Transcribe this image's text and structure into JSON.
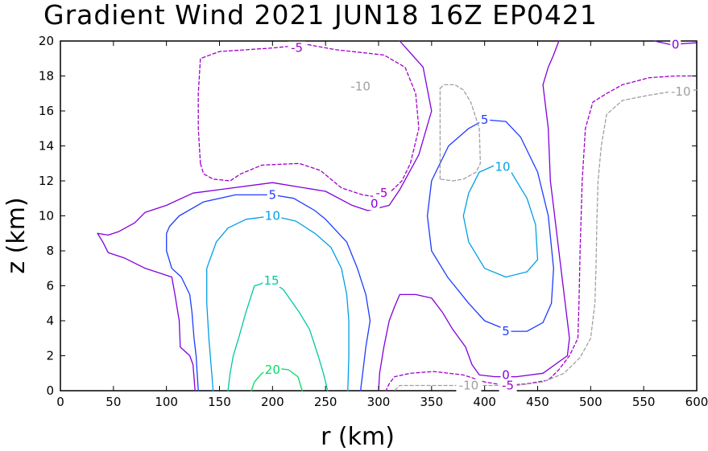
{
  "chart_data": {
    "type": "contour",
    "title": "Gradient Wind 2021 JUN18 16Z  EP0421",
    "xlabel": "r (km)",
    "ylabel": "z (km)",
    "xlim": [
      0,
      600
    ],
    "ylim": [
      0,
      20
    ],
    "x_ticks": [
      0,
      50,
      100,
      150,
      200,
      250,
      300,
      350,
      400,
      450,
      500,
      550,
      600
    ],
    "y_ticks": [
      0,
      2,
      4,
      6,
      8,
      10,
      12,
      14,
      16,
      18,
      20
    ],
    "levels": [
      {
        "value": -10,
        "label": "-10",
        "color": "#a0a0a0",
        "dashed": true
      },
      {
        "value": -5,
        "label": "-5",
        "color": "#a000c8",
        "dashed": true
      },
      {
        "value": 0,
        "label": "0",
        "color": "#8200dc",
        "dashed": false
      },
      {
        "value": 5,
        "label": "5",
        "color": "#1e3cff",
        "dashed": false
      },
      {
        "value": 10,
        "label": "10",
        "color": "#00a0e6",
        "dashed": false
      },
      {
        "value": 15,
        "label": "15",
        "color": "#00c8a0",
        "dashed": false
      },
      {
        "value": 20,
        "label": "20",
        "color": "#00dc64",
        "dashed": false
      }
    ],
    "contours": [
      {
        "level": 0,
        "points": [
          [
            35,
            9
          ],
          [
            45,
            8.9
          ],
          [
            55,
            9.1
          ],
          [
            70,
            9.6
          ],
          [
            80,
            10.2
          ],
          [
            100,
            10.6
          ],
          [
            125,
            11.3
          ],
          [
            150,
            11.5
          ],
          [
            200,
            11.9
          ],
          [
            250,
            11.4
          ],
          [
            275,
            10.6
          ],
          [
            290,
            10.3
          ],
          [
            310,
            10.6
          ],
          [
            320,
            11.5
          ],
          [
            338,
            13.5
          ],
          [
            350,
            16
          ],
          [
            342,
            18.5
          ],
          [
            320,
            20
          ]
        ]
      },
      {
        "level": 0,
        "points": [
          [
            35,
            9
          ],
          [
            40,
            8.5
          ],
          [
            45,
            7.9
          ],
          [
            60,
            7.6
          ],
          [
            80,
            7
          ],
          [
            105,
            6.5
          ],
          [
            108,
            5.5
          ],
          [
            112,
            4
          ],
          [
            113,
            2.5
          ],
          [
            122,
            2
          ],
          [
            125,
            1.5
          ],
          [
            127,
            0
          ]
        ]
      },
      {
        "level": 0,
        "points": [
          [
            470,
            20
          ],
          [
            465,
            19.2
          ],
          [
            460,
            18.5
          ],
          [
            455,
            17.5
          ],
          [
            460,
            15
          ],
          [
            462,
            12
          ],
          [
            465,
            10.5
          ],
          [
            470,
            8
          ],
          [
            480,
            3
          ],
          [
            478,
            2
          ],
          [
            455,
            1
          ],
          [
            430,
            0.8
          ],
          [
            410,
            0.8
          ],
          [
            395,
            0.9
          ],
          [
            388,
            1.5
          ],
          [
            382,
            2.5
          ],
          [
            370,
            3.5
          ],
          [
            360,
            4.5
          ],
          [
            350,
            5.3
          ],
          [
            335,
            5.5
          ],
          [
            320,
            5.5
          ],
          [
            315,
            4.8
          ],
          [
            310,
            4
          ],
          [
            305,
            2.5
          ],
          [
            301,
            1
          ],
          [
            300,
            0
          ]
        ]
      },
      {
        "level": 0,
        "points": [
          [
            560,
            20
          ],
          [
            575,
            19.8
          ],
          [
            600,
            19.9
          ]
        ]
      },
      {
        "level": 5,
        "points": [
          [
            130,
            0
          ],
          [
            129,
            1
          ],
          [
            128,
            2
          ],
          [
            126,
            3
          ],
          [
            124,
            4.5
          ],
          [
            122,
            5.5
          ],
          [
            114,
            6.5
          ],
          [
            105,
            7
          ],
          [
            100,
            8
          ],
          [
            100,
            9
          ],
          [
            103,
            9.4
          ],
          [
            112,
            10
          ],
          [
            135,
            10.8
          ],
          [
            165,
            11.2
          ],
          [
            200,
            11.2
          ],
          [
            220,
            11
          ],
          [
            240,
            10.3
          ],
          [
            250,
            9.8
          ],
          [
            270,
            8.5
          ],
          [
            280,
            7
          ],
          [
            288,
            5.5
          ],
          [
            292,
            4
          ],
          [
            288,
            2.5
          ],
          [
            285,
            1
          ],
          [
            283,
            0
          ]
        ]
      },
      {
        "level": 5,
        "points": [
          [
            420,
            3.5
          ],
          [
            400,
            4
          ],
          [
            385,
            5
          ],
          [
            365,
            6.5
          ],
          [
            350,
            8
          ],
          [
            346,
            10
          ],
          [
            350,
            12
          ],
          [
            366,
            14
          ],
          [
            385,
            15
          ],
          [
            400,
            15.5
          ],
          [
            420,
            15.4
          ],
          [
            434,
            14.5
          ],
          [
            450,
            12.5
          ],
          [
            460,
            10
          ],
          [
            465,
            7
          ],
          [
            463,
            5
          ],
          [
            455,
            3.9
          ],
          [
            440,
            3.4
          ],
          [
            425,
            3.4
          ],
          [
            420,
            3.5
          ]
        ]
      },
      {
        "level": 10,
        "points": [
          [
            144,
            0
          ],
          [
            142,
            1.5
          ],
          [
            140,
            3
          ],
          [
            138,
            5
          ],
          [
            138,
            7
          ],
          [
            147,
            8.5
          ],
          [
            158,
            9.3
          ],
          [
            175,
            9.8
          ],
          [
            200,
            10
          ],
          [
            222,
            9.7
          ],
          [
            240,
            9
          ],
          [
            255,
            8.2
          ],
          [
            265,
            7
          ],
          [
            270,
            5.5
          ],
          [
            272,
            4
          ],
          [
            272,
            2
          ],
          [
            271,
            0
          ]
        ]
      },
      {
        "level": 10,
        "points": [
          [
            420,
            6.5
          ],
          [
            400,
            7
          ],
          [
            385,
            8.5
          ],
          [
            380,
            10
          ],
          [
            385,
            11.3
          ],
          [
            395,
            12.5
          ],
          [
            410,
            12.9
          ],
          [
            425,
            12.5
          ],
          [
            440,
            11
          ],
          [
            448,
            9.5
          ],
          [
            450,
            7.5
          ],
          [
            440,
            6.8
          ],
          [
            420,
            6.5
          ]
        ]
      },
      {
        "level": 15,
        "points": [
          [
            158,
            0
          ],
          [
            160,
            1
          ],
          [
            163,
            2
          ],
          [
            168,
            3
          ],
          [
            175,
            4.5
          ],
          [
            183,
            6
          ],
          [
            189,
            6.1
          ],
          [
            193,
            6.3
          ],
          [
            200,
            6.2
          ],
          [
            210,
            5.8
          ],
          [
            225,
            4.5
          ],
          [
            235,
            3.5
          ],
          [
            243,
            2
          ],
          [
            248,
            1
          ],
          [
            252,
            0
          ]
        ]
      },
      {
        "level": 20,
        "points": [
          [
            180,
            0
          ],
          [
            183,
            0.5
          ],
          [
            190,
            1
          ],
          [
            200,
            1.3
          ],
          [
            215,
            1.2
          ],
          [
            224,
            0.8
          ],
          [
            228,
            0
          ]
        ]
      },
      {
        "level": -5,
        "points": [
          [
            132,
            13
          ],
          [
            130,
            15
          ],
          [
            130,
            17
          ],
          [
            132,
            19
          ],
          [
            150,
            19.4
          ],
          [
            200,
            19.6
          ],
          [
            233,
            19.8
          ],
          [
            260,
            19.5
          ],
          [
            305,
            19.2
          ],
          [
            325,
            18.5
          ],
          [
            335,
            17
          ],
          [
            338,
            15
          ],
          [
            330,
            13
          ],
          [
            322,
            12
          ],
          [
            310,
            11.3
          ],
          [
            296,
            11.1
          ],
          [
            285,
            11.2
          ],
          [
            265,
            11.6
          ],
          [
            245,
            12.6
          ],
          [
            225,
            13
          ],
          [
            190,
            12.9
          ],
          [
            170,
            12.4
          ],
          [
            160,
            12
          ],
          [
            144,
            12.1
          ],
          [
            135,
            12.4
          ],
          [
            132,
            13
          ]
        ]
      },
      {
        "level": -5,
        "points": [
          [
            600,
            18
          ],
          [
            580,
            18
          ],
          [
            555,
            17.9
          ],
          [
            530,
            17.5
          ],
          [
            515,
            17
          ],
          [
            502,
            16.5
          ],
          [
            495,
            15
          ],
          [
            492,
            12
          ],
          [
            490,
            8
          ],
          [
            489,
            5
          ],
          [
            488,
            3
          ],
          [
            480,
            2
          ],
          [
            470,
            1.2
          ],
          [
            460,
            0.6
          ],
          [
            440,
            0.4
          ],
          [
            420,
            0.3
          ],
          [
            400,
            0.5
          ],
          [
            380,
            0.9
          ],
          [
            352,
            1.1
          ],
          [
            330,
            1
          ],
          [
            315,
            0.8
          ],
          [
            310,
            0.4
          ],
          [
            307,
            0
          ]
        ]
      },
      {
        "level": -10,
        "points": [
          [
            358,
            17.3
          ],
          [
            362,
            17.5
          ],
          [
            372,
            17.5
          ],
          [
            380,
            17.2
          ],
          [
            387,
            16.5
          ],
          [
            395,
            15
          ],
          [
            396,
            13
          ],
          [
            392,
            12.5
          ],
          [
            380,
            12.1
          ],
          [
            370,
            12
          ],
          [
            358,
            12.1
          ]
        ]
      },
      {
        "level": -10,
        "points": [
          [
            358,
            12.1
          ],
          [
            358,
            17.3
          ]
        ]
      },
      {
        "level": -10,
        "points": [
          [
            600,
            17.2
          ],
          [
            575,
            17.1
          ],
          [
            555,
            16.9
          ],
          [
            530,
            16.6
          ],
          [
            515,
            15.8
          ],
          [
            510,
            14
          ],
          [
            507,
            12
          ],
          [
            506,
            10
          ],
          [
            505,
            7
          ],
          [
            504,
            5
          ],
          [
            500,
            3
          ],
          [
            490,
            1.9
          ],
          [
            475,
            1
          ],
          [
            455,
            0.5
          ],
          [
            430,
            0.3
          ],
          [
            400,
            0.3
          ],
          [
            370,
            0.3
          ],
          [
            340,
            0.3
          ],
          [
            320,
            0.3
          ],
          [
            315,
            0
          ]
        ]
      }
    ],
    "contour_labels": [
      {
        "text": "-5",
        "level": -5,
        "x": 223,
        "y": 19.6
      },
      {
        "text": "-10",
        "level": -10,
        "x": 283,
        "y": 17.4
      },
      {
        "text": "-5",
        "level": -5,
        "x": 303,
        "y": 11.3
      },
      {
        "text": "0",
        "level": 0,
        "x": 296,
        "y": 10.7
      },
      {
        "text": "5",
        "level": 5,
        "x": 200,
        "y": 11.2
      },
      {
        "text": "10",
        "level": 10,
        "x": 200,
        "y": 10
      },
      {
        "text": "15",
        "level": 15,
        "x": 199,
        "y": 6.3
      },
      {
        "text": "20",
        "level": 20,
        "x": 200,
        "y": 1.2
      },
      {
        "text": "5",
        "level": 5,
        "x": 400,
        "y": 15.5
      },
      {
        "text": "10",
        "level": 10,
        "x": 417,
        "y": 12.8
      },
      {
        "text": "5",
        "level": 5,
        "x": 420,
        "y": 3.4
      },
      {
        "text": "0",
        "level": 0,
        "x": 420,
        "y": 0.9
      },
      {
        "text": "-5",
        "level": -5,
        "x": 422,
        "y": 0.3
      },
      {
        "text": "-10",
        "level": -10,
        "x": 385,
        "y": 0.3
      },
      {
        "text": "0",
        "level": 0,
        "x": 580,
        "y": 19.8
      },
      {
        "text": "-10",
        "level": -10,
        "x": 585,
        "y": 17.1
      }
    ]
  }
}
